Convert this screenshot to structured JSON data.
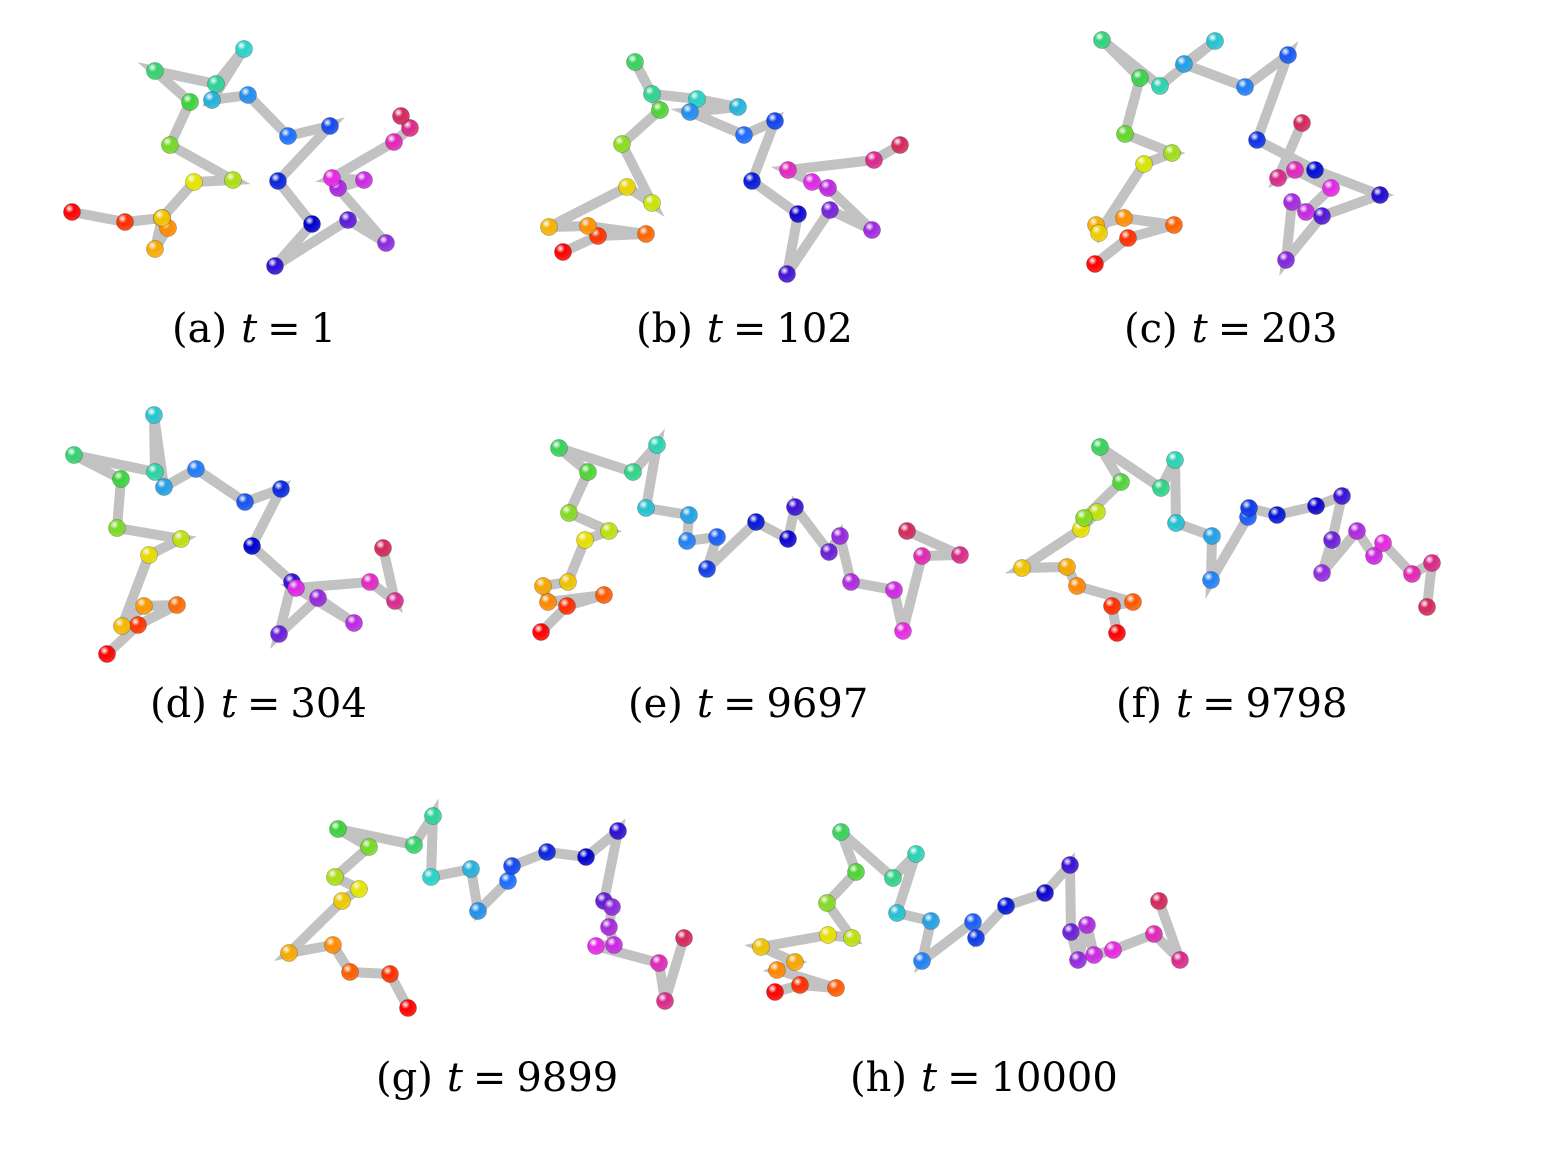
{
  "panels": [
    {
      "label": "(a)",
      "var": "t",
      "eq": "=",
      "value": "1"
    },
    {
      "label": "(b)",
      "var": "t",
      "eq": "=",
      "value": "102"
    },
    {
      "label": "(c)",
      "var": "t",
      "eq": "=",
      "value": "203"
    },
    {
      "label": "(d)",
      "var": "t",
      "eq": "=",
      "value": "304"
    },
    {
      "label": "(e)",
      "var": "t",
      "eq": "=",
      "value": "9697"
    },
    {
      "label": "(f)",
      "var": "t",
      "eq": "=",
      "value": "9798"
    },
    {
      "label": "(g)",
      "var": "t",
      "eq": "=",
      "value": "9899"
    },
    {
      "label": "(h)",
      "var": "t",
      "eq": "=",
      "value": "10000"
    }
  ],
  "colors": {
    "bond": "#c2c2c2",
    "bead_gradient": [
      "#ff0000",
      "#ff8c00",
      "#e6e600",
      "#3cd23c",
      "#28d2c8",
      "#1e6eff",
      "#0000cc",
      "#8c28dc",
      "#e628e6",
      "#d2285a"
    ]
  }
}
